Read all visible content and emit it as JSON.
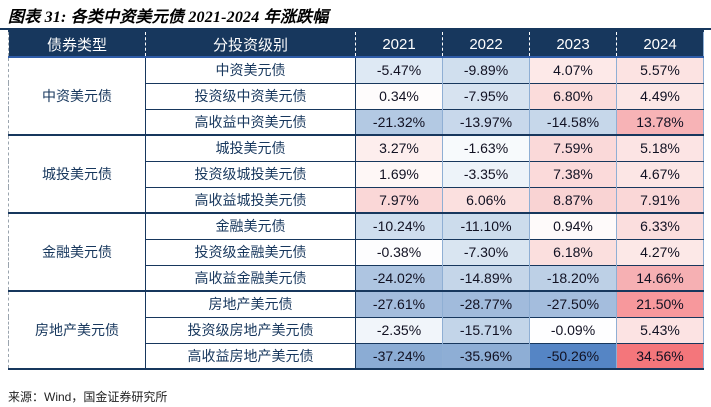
{
  "title": "图表 31:  各类中资美元债 2021-2024 年涨跌幅",
  "source": "来源：Wind，国金证券研究所",
  "colors": {
    "header_bg": "#17375D",
    "header_text": "#FFFFFF",
    "header_underline": "#2F5CA8",
    "grid_navy": "#17375D",
    "grid_light_blue": "#8FAFD4",
    "label_text": "#17375D",
    "negative_extreme": "#5585C5",
    "positive_extreme": "#F4767B"
  },
  "chart_data": {
    "type": "table",
    "title": "图表 31:  各类中资美元债 2021-2024 年涨跌幅",
    "columns": [
      "债券类型",
      "分投资级别",
      "2021",
      "2022",
      "2023",
      "2024"
    ],
    "value_format": "percent",
    "color_scale": {
      "negative": "#5585C5",
      "neutral": "#FFFFFF",
      "positive": "#F4767B"
    },
    "groups": [
      {
        "name": "中资美元债",
        "rows": [
          {
            "label": "中资美元债",
            "values": [
              -5.47,
              -9.89,
              4.07,
              5.57
            ],
            "cell_colors": [
              "#DEE9F4",
              "#D0DFEE",
              "#FDE9E8",
              "#FCE3E2"
            ]
          },
          {
            "label": "投资级中资美元债",
            "values": [
              0.34,
              -7.95,
              6.8,
              4.49
            ],
            "cell_colors": [
              "#FEFCFC",
              "#D7E3F0",
              "#FBDCDB",
              "#FCE7E6"
            ]
          },
          {
            "label": "高收益中资美元债",
            "values": [
              -21.32,
              -13.97,
              -14.58,
              13.78
            ],
            "cell_colors": [
              "#B3C9E3",
              "#C8D8EB",
              "#C6D7EA",
              "#F7B3B6"
            ]
          }
        ]
      },
      {
        "name": "城投美元债",
        "rows": [
          {
            "label": "城投美元债",
            "values": [
              3.27,
              -1.63,
              7.59,
              5.18
            ],
            "cell_colors": [
              "#FDEEED",
              "#F7FAFC",
              "#FAD9D9",
              "#FCE4E4"
            ]
          },
          {
            "label": "投资级城投美元债",
            "values": [
              1.69,
              -3.35,
              7.38,
              4.67
            ],
            "cell_colors": [
              "#FEF7F6",
              "#EDF3F9",
              "#FBDADA",
              "#FCE6E5"
            ]
          },
          {
            "label": "高收益城投美元债",
            "values": [
              7.97,
              6.06,
              8.87,
              7.91
            ],
            "cell_colors": [
              "#FAD7D7",
              "#FBE0DF",
              "#F9D3D3",
              "#FAD7D7"
            ]
          }
        ]
      },
      {
        "name": "金融美元债",
        "rows": [
          {
            "label": "金融美元债",
            "values": [
              -10.24,
              -11.1,
              0.94,
              6.33
            ],
            "cell_colors": [
              "#CFDEEE",
              "#CCDCEC",
              "#FEFAFA",
              "#FBDEDE"
            ]
          },
          {
            "label": "投资级金融美元债",
            "values": [
              -0.38,
              -7.3,
              6.18,
              4.27
            ],
            "cell_colors": [
              "#FDFDFE",
              "#D9E5F1",
              "#FBDFDE",
              "#FCE8E7"
            ]
          },
          {
            "label": "高收益金融美元债",
            "values": [
              -24.02,
              -14.89,
              -18.2,
              14.66
            ],
            "cell_colors": [
              "#AEC5E1",
              "#C5D6E9",
              "#BDD0E6",
              "#F6B0B3"
            ]
          }
        ]
      },
      {
        "name": "房地产美元债",
        "rows": [
          {
            "label": "房地产美元债",
            "values": [
              -27.61,
              -28.77,
              -27.5,
              21.5
            ],
            "cell_colors": [
              "#A4BDDD",
              "#A1BBDC",
              "#A4BDDD",
              "#F7989C"
            ]
          },
          {
            "label": "投资级房地产美元债",
            "values": [
              -2.35,
              -15.71,
              -0.09,
              5.43
            ],
            "cell_colors": [
              "#F1F5FA",
              "#C3D5E9",
              "#FEFEFF",
              "#FCE3E3"
            ]
          },
          {
            "label": "高收益房地产美元债",
            "values": [
              -37.24,
              -35.96,
              -50.26,
              34.56
            ],
            "cell_colors": [
              "#8BACD4",
              "#8EAED5",
              "#5585C5",
              "#F4767B"
            ]
          }
        ]
      }
    ]
  }
}
